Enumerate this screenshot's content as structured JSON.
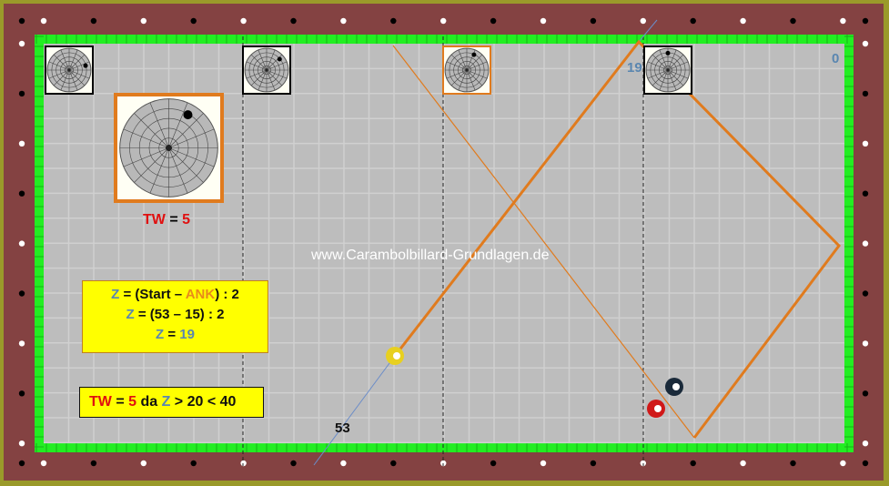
{
  "colors": {
    "rail": "#844242",
    "frame": "#9a9a2a",
    "cushion": "#22ee22",
    "cloth": "#bdbdbd",
    "path": "#e07b1e",
    "aim": "#6a8cc8",
    "box": "#ffff00"
  },
  "watermark": "www.Carambolbillard-Grundlagen.de",
  "tw_label": {
    "tw": "TW",
    "eq": " = ",
    "val": "5"
  },
  "markers": {
    "z_point": "19",
    "zero": "0",
    "start": "53"
  },
  "formula": {
    "line1": {
      "z": "Z",
      "a": " = (Start – ",
      "ank": "ANK",
      "b": ") : 2"
    },
    "line2": {
      "z": "Z",
      "rest": " = (53 – 15) : 2"
    },
    "line3": {
      "z": "Z",
      "eq": " = ",
      "val": "19"
    }
  },
  "rule": {
    "tw": "TW",
    "eq": " = ",
    "val": "5",
    "da": " da ",
    "z": "Z",
    "rest": " > 20 < 40"
  },
  "balls": [
    {
      "name": "yellow-ball",
      "color": "#e8d020"
    },
    {
      "name": "black-ball",
      "color": "#1a2a3a"
    },
    {
      "name": "red-ball",
      "color": "#d01818"
    }
  ],
  "spin_diagrams": [
    {
      "name": "spin-diagram-1",
      "dot_angle": -15
    },
    {
      "name": "spin-diagram-2",
      "dot_angle": -40
    },
    {
      "name": "spin-diagram-3",
      "dot_angle": -65
    },
    {
      "name": "spin-diagram-4",
      "dot_angle": -90
    },
    {
      "name": "spin-diagram-large",
      "dot_angle": -60
    }
  ]
}
